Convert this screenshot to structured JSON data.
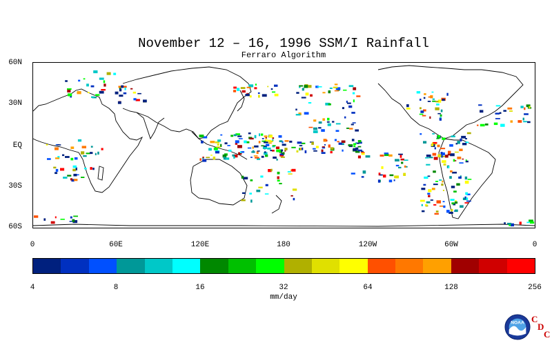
{
  "title": "November 12 – 16, 1996 SSM/I Rainfall",
  "subtitle": "Ferraro Algorithm",
  "map": {
    "lat_labels": [
      "60N",
      "30N",
      "EQ",
      "30S",
      "60S"
    ],
    "lon_labels": [
      "0",
      "60E",
      "120E",
      "180",
      "120W",
      "60W",
      "0"
    ]
  },
  "colorbar": {
    "colors": [
      "#00207e",
      "#0030c0",
      "#0050ff",
      "#009898",
      "#00c8c8",
      "#00ffff",
      "#008800",
      "#00c000",
      "#00ff00",
      "#b0b000",
      "#e0e000",
      "#ffff00",
      "#ff5000",
      "#ff7800",
      "#ffa000",
      "#a00000",
      "#d00000",
      "#ff0000"
    ],
    "tick_labels": [
      "4",
      "8",
      "16",
      "32",
      "64",
      "128",
      "256"
    ],
    "units": "mm/day"
  },
  "logo": {
    "name": "noaa-logo",
    "text": "NOAA",
    "cdc_letters": [
      "C",
      "D",
      "C"
    ]
  }
}
